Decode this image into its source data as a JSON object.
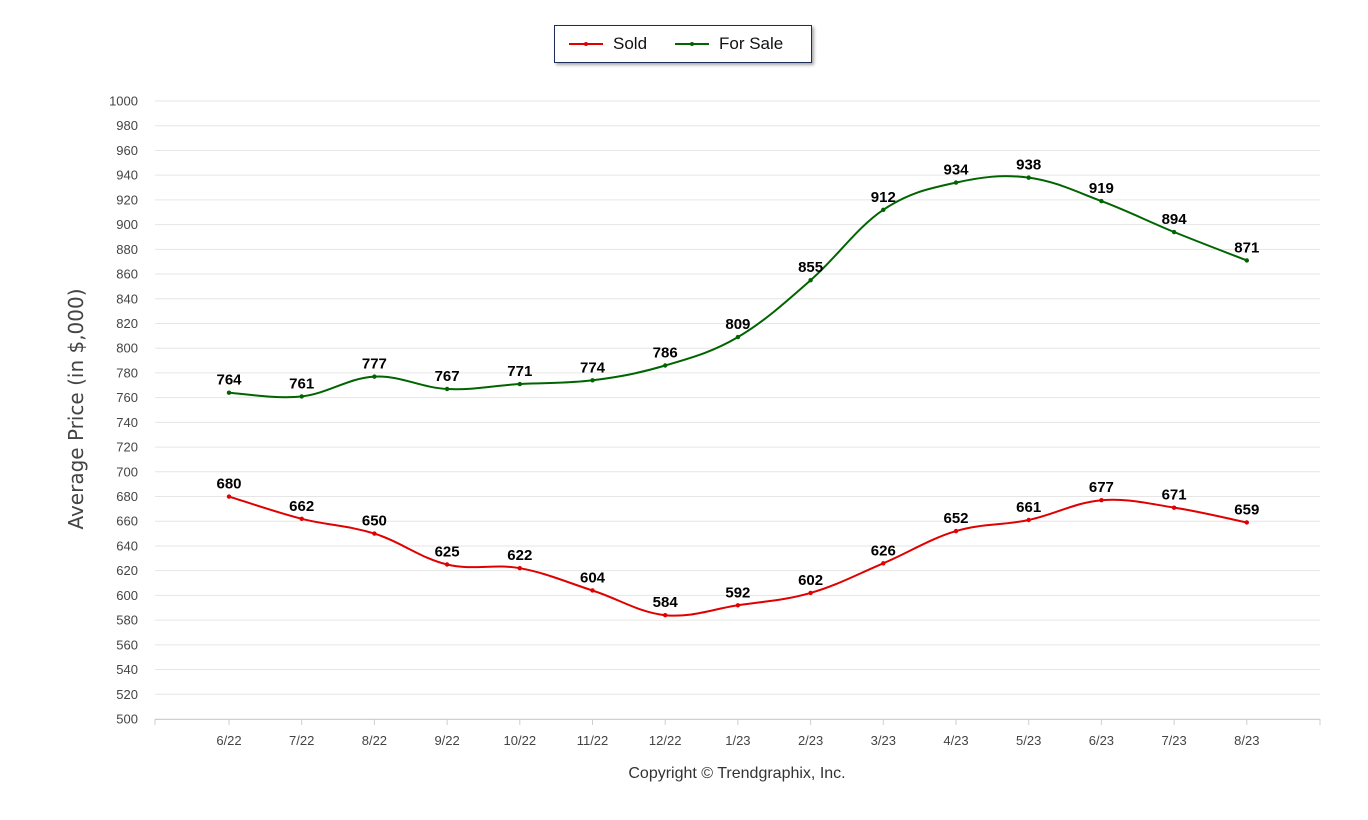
{
  "chart_data": {
    "type": "line",
    "categories": [
      "6/22",
      "7/22",
      "8/22",
      "9/22",
      "10/22",
      "11/22",
      "12/22",
      "1/23",
      "2/23",
      "3/23",
      "4/23",
      "5/23",
      "6/23",
      "7/23",
      "8/23"
    ],
    "series": [
      {
        "name": "Sold",
        "color": "#e00000",
        "values": [
          680,
          662,
          650,
          625,
          622,
          604,
          584,
          592,
          602,
          626,
          652,
          661,
          677,
          671,
          659
        ]
      },
      {
        "name": "For Sale",
        "color": "#006400",
        "values": [
          764,
          761,
          777,
          767,
          771,
          774,
          786,
          809,
          855,
          912,
          934,
          938,
          919,
          894,
          871
        ]
      }
    ],
    "ylabel": "Average Price (in $,000)",
    "xlabel": "",
    "ylim": [
      500,
      1000
    ],
    "yticks": [
      500,
      520,
      540,
      560,
      580,
      600,
      620,
      640,
      660,
      680,
      700,
      720,
      740,
      760,
      780,
      800,
      820,
      840,
      860,
      880,
      900,
      920,
      940,
      960,
      980,
      1000
    ],
    "grid": true,
    "legend_position": "top-center",
    "data_labels": true,
    "smooth": true
  },
  "copyright": "Copyright © Trendgraphix, Inc."
}
